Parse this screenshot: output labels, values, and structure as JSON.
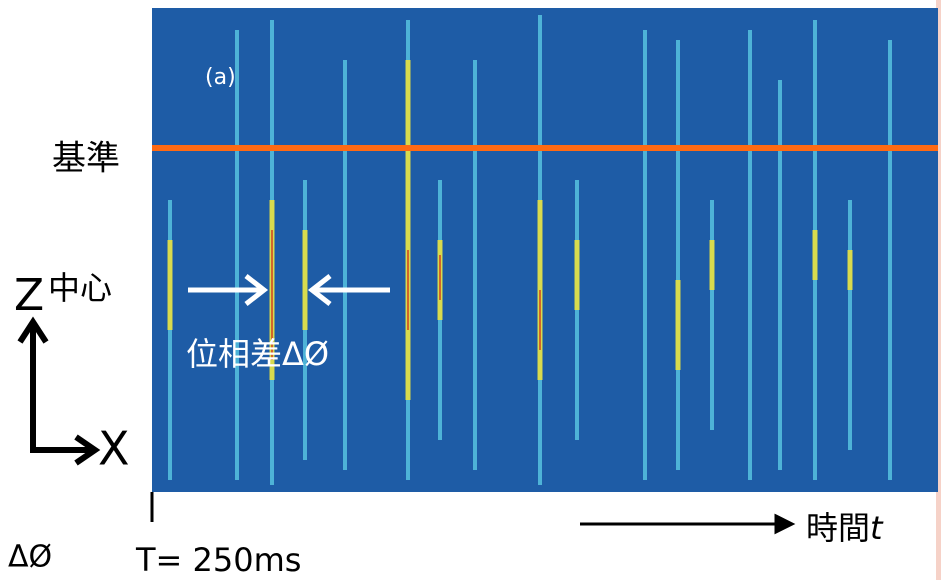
{
  "figure": {
    "panel_label": "(a)",
    "reference_label": "基準",
    "z_axis_label": "Z",
    "center_label": "中心",
    "phase_difference_label": "位相差ΔØ",
    "x_axis_label": "X",
    "delta_phi_label": "ΔØ",
    "period_label": "T= 250ms",
    "time_label": "時間",
    "time_symbol": "t"
  }
}
